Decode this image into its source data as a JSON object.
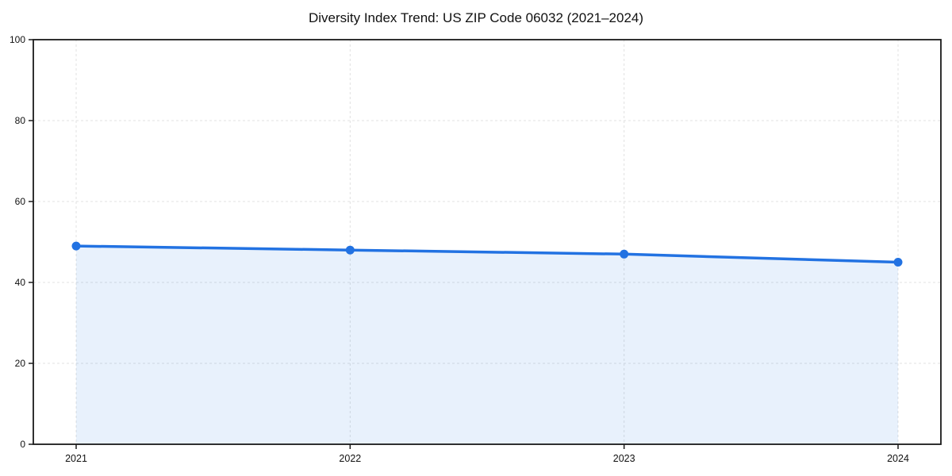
{
  "title": "Diversity Index Trend: US ZIP Code 06032 (2021–2024)",
  "chart_data": {
    "type": "area",
    "title": "Diversity Index Trend: US ZIP Code 06032 (2021–2024)",
    "categories": [
      "2021",
      "2022",
      "2023",
      "2024"
    ],
    "values": [
      49,
      48,
      47,
      45
    ],
    "series": [
      {
        "name": "Diversity Index",
        "values": [
          49,
          48,
          47,
          45
        ]
      }
    ],
    "xlabel": "",
    "ylabel": "",
    "ylim": [
      0,
      100
    ],
    "yticks": [
      0,
      20,
      40,
      60,
      80,
      100
    ],
    "grid": true,
    "grid_style": "dashed",
    "legend_position": "none",
    "line_color": "#2272e2",
    "marker_color": "#2272e2",
    "fill_color": "rgba(34,114,226,0.10)",
    "grid_color": "#e0e0e0",
    "spine_color": "#1a1a1a",
    "tick_label_color": "#111111"
  }
}
